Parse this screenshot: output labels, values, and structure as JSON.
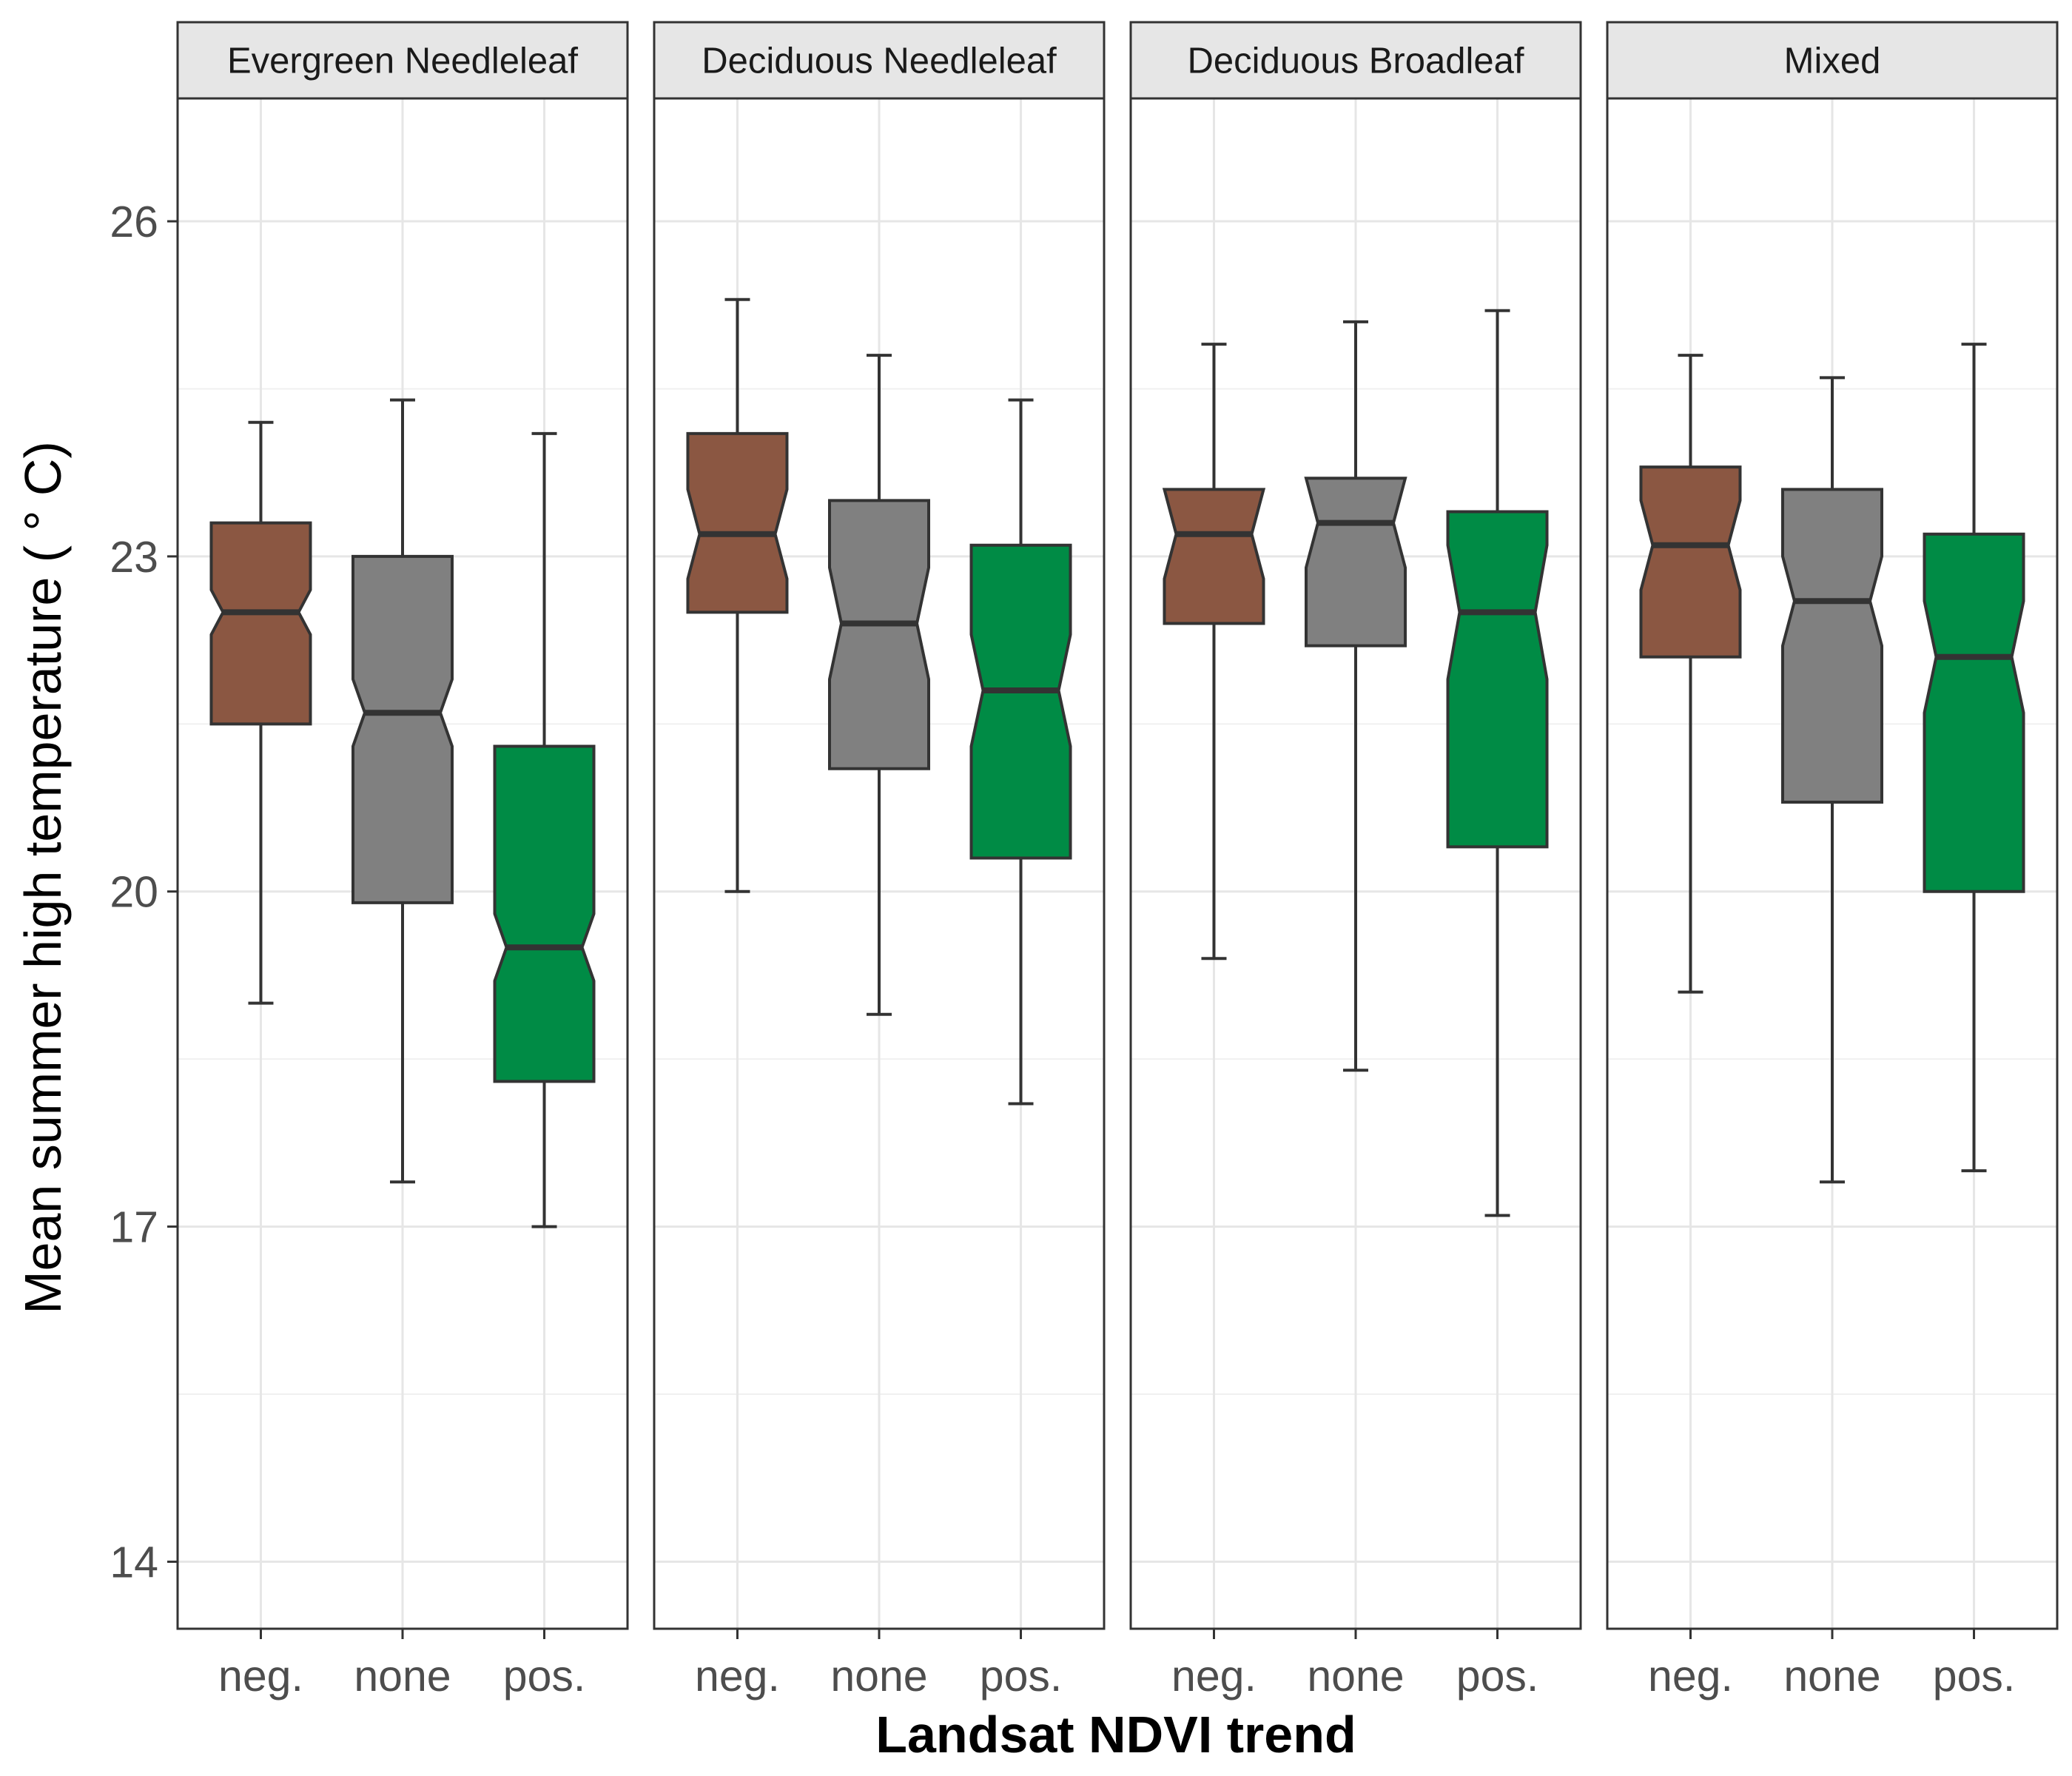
{
  "chart_data": {
    "type": "boxplot",
    "notched": true,
    "xlabel": "Landsat NDVI trend",
    "ylabel": "Mean summer high temperature ( ° C)",
    "y_ticks": [
      14,
      17,
      20,
      23,
      26
    ],
    "ylim": [
      13.4,
      27.1
    ],
    "grid": true,
    "categories": [
      "neg.",
      "none",
      "pos."
    ],
    "colors": {
      "neg.": "#8B5742",
      "none": "#808080",
      "pos.": "#008B45"
    },
    "facets": [
      {
        "title": "Evergreen Needleleaf",
        "boxes": [
          {
            "category": "neg.",
            "whisker_low": 19.0,
            "q1": 21.5,
            "median": 22.5,
            "q3": 23.3,
            "whisker_high": 24.2,
            "notch": [
              22.3,
              22.7
            ]
          },
          {
            "category": "none",
            "whisker_low": 17.4,
            "q1": 19.9,
            "median": 21.6,
            "q3": 23.0,
            "whisker_high": 24.4,
            "notch": [
              21.3,
              21.9
            ]
          },
          {
            "category": "pos.",
            "whisker_low": 17.0,
            "q1": 18.3,
            "median": 19.5,
            "q3": 21.3,
            "whisker_high": 24.1,
            "notch": [
              19.2,
              19.8
            ]
          }
        ]
      },
      {
        "title": "Deciduous Needleleaf",
        "boxes": [
          {
            "category": "neg.",
            "whisker_low": 20.0,
            "q1": 22.5,
            "median": 23.2,
            "q3": 24.1,
            "whisker_high": 25.3,
            "notch": [
              22.8,
              23.6
            ]
          },
          {
            "category": "none",
            "whisker_low": 18.9,
            "q1": 21.1,
            "median": 22.4,
            "q3": 23.5,
            "whisker_high": 24.8,
            "notch": [
              21.9,
              22.9
            ]
          },
          {
            "category": "pos.",
            "whisker_low": 18.1,
            "q1": 20.3,
            "median": 21.8,
            "q3": 23.1,
            "whisker_high": 24.4,
            "notch": [
              21.3,
              22.3
            ]
          }
        ]
      },
      {
        "title": "Deciduous Broadleaf",
        "boxes": [
          {
            "category": "neg.",
            "whisker_low": 19.4,
            "q1": 22.4,
            "median": 23.2,
            "q3": 23.6,
            "whisker_high": 24.9,
            "notch": [
              22.8,
              23.6
            ]
          },
          {
            "category": "none",
            "whisker_low": 18.4,
            "q1": 22.2,
            "median": 23.3,
            "q3": 23.7,
            "whisker_high": 25.1,
            "notch": [
              22.9,
              23.7
            ]
          },
          {
            "category": "pos.",
            "whisker_low": 17.1,
            "q1": 20.4,
            "median": 22.5,
            "q3": 23.4,
            "whisker_high": 25.2,
            "notch": [
              21.9,
              23.1
            ]
          }
        ]
      },
      {
        "title": "Mixed",
        "boxes": [
          {
            "category": "neg.",
            "whisker_low": 19.1,
            "q1": 22.1,
            "median": 23.1,
            "q3": 23.8,
            "whisker_high": 24.8,
            "notch": [
              22.7,
              23.5
            ]
          },
          {
            "category": "none",
            "whisker_low": 17.4,
            "q1": 20.8,
            "median": 22.6,
            "q3": 23.6,
            "whisker_high": 24.6,
            "notch": [
              22.2,
              23.0
            ]
          },
          {
            "category": "pos.",
            "whisker_low": 17.5,
            "q1": 20.0,
            "median": 22.1,
            "q3": 23.2,
            "whisker_high": 24.9,
            "notch": [
              21.6,
              22.6
            ]
          }
        ]
      }
    ]
  }
}
